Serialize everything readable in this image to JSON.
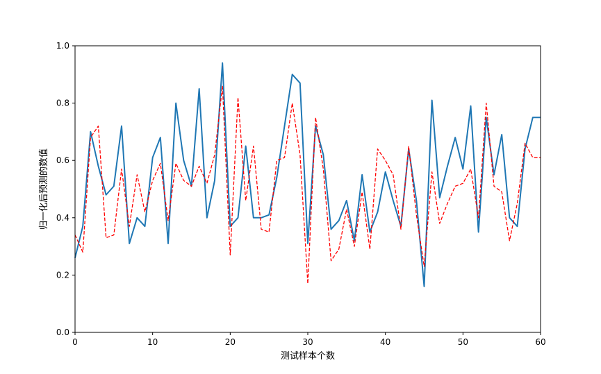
{
  "chart_data": {
    "type": "line",
    "xlabel": "测试样本个数",
    "ylabel": "归一化后预测的数值",
    "xlim": [
      0,
      60
    ],
    "ylim": [
      0,
      1.0
    ],
    "xticks": [
      0,
      10,
      20,
      30,
      40,
      50,
      60
    ],
    "yticks": [
      0.0,
      0.2,
      0.4,
      0.6,
      0.8,
      1.0
    ],
    "xtick_labels": [
      "0",
      "10",
      "20",
      "30",
      "40",
      "50",
      "60"
    ],
    "ytick_labels": [
      "0.0",
      "0.2",
      "0.4",
      "0.6",
      "0.8",
      "1.0"
    ],
    "grid": false,
    "x": [
      0,
      1,
      2,
      3,
      4,
      5,
      6,
      7,
      8,
      9,
      10,
      11,
      12,
      13,
      14,
      15,
      16,
      17,
      18,
      19,
      20,
      21,
      22,
      23,
      24,
      25,
      26,
      27,
      28,
      29,
      30,
      31,
      32,
      33,
      34,
      35,
      36,
      37,
      38,
      39,
      40,
      41,
      42,
      43,
      44,
      45,
      46,
      47,
      48,
      49,
      50,
      51,
      52,
      53,
      54,
      55,
      56,
      57,
      58,
      59,
      60
    ],
    "series": [
      {
        "color": "#1f77b4",
        "style": "solid",
        "values": [
          0.26,
          0.37,
          0.7,
          0.58,
          0.48,
          0.51,
          0.72,
          0.31,
          0.4,
          0.37,
          0.61,
          0.68,
          0.31,
          0.8,
          0.6,
          0.51,
          0.85,
          0.4,
          0.53,
          0.94,
          0.37,
          0.4,
          0.65,
          0.4,
          0.4,
          0.41,
          0.54,
          0.72,
          0.9,
          0.87,
          0.31,
          0.72,
          0.62,
          0.36,
          0.39,
          0.46,
          0.32,
          0.55,
          0.35,
          0.42,
          0.56,
          0.46,
          0.37,
          0.64,
          0.46,
          0.16,
          0.81,
          0.47,
          0.58,
          0.68,
          0.57,
          0.79,
          0.35,
          0.75,
          0.55,
          0.69,
          0.4,
          0.37,
          0.64,
          0.75,
          0.75
        ]
      },
      {
        "color": "#ff0000",
        "style": "dashed",
        "values": [
          0.34,
          0.28,
          0.68,
          0.72,
          0.33,
          0.34,
          0.57,
          0.37,
          0.55,
          0.42,
          0.53,
          0.59,
          0.39,
          0.59,
          0.53,
          0.51,
          0.58,
          0.52,
          0.62,
          0.86,
          0.27,
          0.82,
          0.46,
          0.65,
          0.36,
          0.35,
          0.6,
          0.61,
          0.8,
          0.62,
          0.17,
          0.75,
          0.57,
          0.25,
          0.29,
          0.43,
          0.3,
          0.49,
          0.29,
          0.64,
          0.6,
          0.55,
          0.36,
          0.65,
          0.41,
          0.23,
          0.56,
          0.38,
          0.45,
          0.51,
          0.52,
          0.57,
          0.4,
          0.8,
          0.51,
          0.49,
          0.32,
          0.45,
          0.66,
          0.61,
          0.61
        ]
      }
    ]
  }
}
